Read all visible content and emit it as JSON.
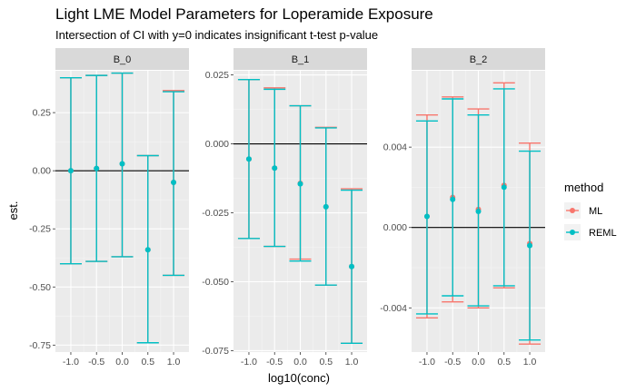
{
  "chart_data": {
    "type": "errorbar",
    "title": "Light LME Model Parameters for Loperamide Exposure",
    "subtitle": "Intersection of CI with y=0 indicates insignificant t-test p-value",
    "xlabel": "log10(conc)",
    "ylabel": "est.",
    "legend": {
      "title": "method",
      "position": "right",
      "entries": [
        {
          "name": "ML",
          "color": "#F8766D"
        },
        {
          "name": "REML",
          "color": "#00BFC4"
        }
      ]
    },
    "x_ticks": [
      -1.0,
      -0.5,
      0.0,
      0.5,
      1.0
    ],
    "x_tick_labels": [
      "-1.0",
      "-0.5",
      "0.0",
      "0.5",
      "1.0"
    ],
    "x_range": [
      -1.3,
      1.3
    ],
    "hline": 0,
    "grid": true,
    "panels": [
      {
        "name": "B_0",
        "ylim": [
          -0.78,
          0.43
        ],
        "y_ticks": [
          0.25,
          0.0,
          -0.25,
          -0.5,
          -0.75
        ],
        "y_tick_labels": [
          "0.25",
          "0.00",
          "-0.25",
          "-0.50",
          "-0.75"
        ],
        "x": [
          -1.0,
          -0.5,
          0.0,
          0.5,
          1.0
        ],
        "series": [
          {
            "name": "ML",
            "est": [
              0.0,
              0.01,
              0.03,
              -0.34,
              -0.05
            ],
            "lower": [
              -0.4,
              -0.39,
              -0.37,
              -0.74,
              -0.45
            ],
            "upper": [
              0.4,
              0.41,
              0.42,
              0.065,
              0.345
            ]
          },
          {
            "name": "REML",
            "est": [
              0.0,
              0.01,
              0.03,
              -0.34,
              -0.05
            ],
            "lower": [
              -0.4,
              -0.39,
              -0.37,
              -0.74,
              -0.45
            ],
            "upper": [
              0.4,
              0.41,
              0.42,
              0.065,
              0.34
            ]
          }
        ]
      },
      {
        "name": "B_1",
        "ylim": [
          -0.0755,
          0.0265
        ],
        "y_ticks": [
          0.025,
          0.0,
          -0.025,
          -0.05,
          -0.075
        ],
        "y_tick_labels": [
          "0.025",
          "0.000",
          "-0.025",
          "-0.050",
          "-0.075"
        ],
        "x": [
          -1.0,
          -0.5,
          0.0,
          0.5,
          1.0
        ],
        "series": [
          {
            "name": "ML",
            "est": [
              -0.0055,
              -0.0088,
              -0.0143,
              -0.0228,
              -0.0445
            ],
            "lower": [
              -0.0343,
              -0.0372,
              -0.0418,
              -0.0512,
              -0.0723
            ],
            "upper": [
              0.0233,
              0.0203,
              0.0138,
              0.006,
              -0.0163
            ]
          },
          {
            "name": "REML",
            "est": [
              -0.0055,
              -0.0088,
              -0.0145,
              -0.0228,
              -0.0445
            ],
            "lower": [
              -0.0343,
              -0.0372,
              -0.0425,
              -0.0512,
              -0.0723
            ],
            "upper": [
              0.0233,
              0.0198,
              0.0138,
              0.0058,
              -0.0168
            ]
          }
        ]
      },
      {
        "name": "B_2",
        "ylim": [
          -0.0062,
          0.0078
        ],
        "y_ticks": [
          0.004,
          0.0,
          -0.004
        ],
        "y_tick_labels": [
          "0.004",
          "0.000",
          "-0.004"
        ],
        "x": [
          -1.0,
          -0.5,
          0.0,
          0.5,
          1.0
        ],
        "series": [
          {
            "name": "ML",
            "est": [
              0.00055,
              0.0015,
              0.0009,
              0.0021,
              -0.0008
            ],
            "lower": [
              -0.0045,
              -0.0037,
              -0.004,
              -0.003,
              -0.0058
            ],
            "upper": [
              0.0056,
              0.0065,
              0.0059,
              0.0072,
              0.0042
            ]
          },
          {
            "name": "REML",
            "est": [
              0.00055,
              0.0014,
              0.0008,
              0.002,
              -0.0009
            ],
            "lower": [
              -0.0043,
              -0.0034,
              -0.0039,
              -0.0029,
              -0.0056
            ],
            "upper": [
              0.0053,
              0.0064,
              0.0056,
              0.0069,
              0.0038
            ]
          }
        ]
      }
    ]
  }
}
